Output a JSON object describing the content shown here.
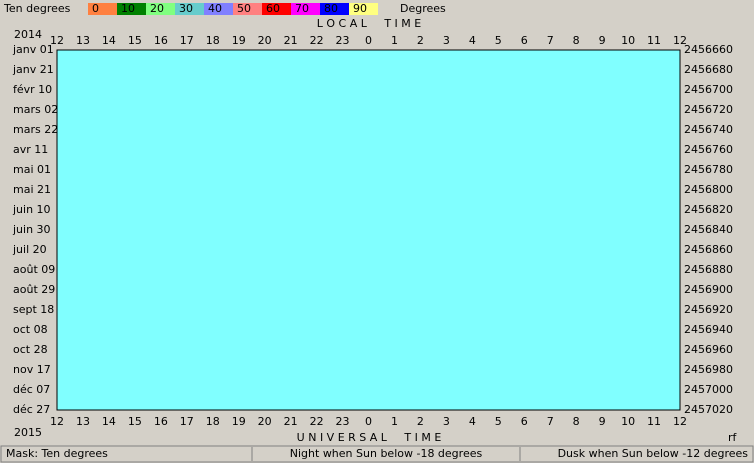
{
  "legend": {
    "mask_label": "Ten degrees",
    "unit": "Degrees",
    "scale": [
      {
        "label": "0",
        "color": "#ff8040"
      },
      {
        "label": "10",
        "color": "#008000"
      },
      {
        "label": "20",
        "color": "#80ff80"
      },
      {
        "label": "30",
        "color": "#66cccc"
      },
      {
        "label": "40",
        "color": "#8080ff"
      },
      {
        "label": "50",
        "color": "#ff8080"
      },
      {
        "label": "60",
        "color": "#ff0000"
      },
      {
        "label": "70",
        "color": "#ff00ff"
      },
      {
        "label": "80",
        "color": "#0000ff"
      },
      {
        "label": "90",
        "color": "#ffff80"
      }
    ]
  },
  "header": {
    "top_title": "L O C A L     T I M E",
    "bottom_title": "U N I V E R S A L     T I M E",
    "year_start": "2014",
    "year_end": "2015",
    "corner": "rf"
  },
  "axes": {
    "top_hours": [
      12,
      13,
      14,
      15,
      16,
      17,
      18,
      19,
      20,
      21,
      22,
      23,
      0,
      1,
      2,
      3,
      4,
      5,
      6,
      7,
      8,
      9,
      10,
      11,
      12
    ],
    "bottom_hours": [
      12,
      13,
      14,
      15,
      16,
      17,
      18,
      19,
      20,
      21,
      22,
      23,
      0,
      1,
      2,
      3,
      4,
      5,
      6,
      7,
      8,
      9,
      10,
      11,
      12
    ],
    "dates": [
      "janv 01",
      "janv 21",
      "févr 10",
      "mars 02",
      "mars 22",
      "avr 11",
      "mai 01",
      "mai 21",
      "juin 10",
      "juin 30",
      "juil 20",
      "août 09",
      "août 29",
      "sept 18",
      "oct 08",
      "oct 28",
      "nov 17",
      "déc 07",
      "déc 27"
    ],
    "julian_days": [
      2456660,
      2456680,
      2456700,
      2456720,
      2456740,
      2456760,
      2456780,
      2456800,
      2456820,
      2456840,
      2456860,
      2456880,
      2456900,
      2456920,
      2456940,
      2456960,
      2456980,
      2457000,
      2457020
    ]
  },
  "status_bar": [
    "Mask:  Ten degrees",
    "Night when Sun below -18 degrees",
    "Dusk when Sun below -12 degrees"
  ]
}
